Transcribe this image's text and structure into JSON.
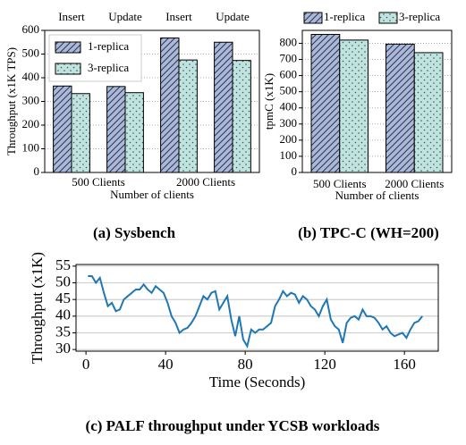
{
  "chart_data": [
    {
      "type": "bar",
      "caption": "(a) Sysbench",
      "ylabel": "Throughput (x1K TPS)",
      "xlabel": "Number of clients",
      "categories": [
        "Insert",
        "Update",
        "Insert",
        "Update"
      ],
      "groups": [
        "500 Clients",
        "2000 Clients"
      ],
      "series": [
        {
          "name": "1-replica",
          "color": "#a9b9dc",
          "values": [
            365,
            363,
            568,
            550
          ]
        },
        {
          "name": "3-replica",
          "color": "#bfe3df",
          "values": [
            333,
            337,
            475,
            473
          ]
        }
      ],
      "ylim": [
        0,
        600
      ],
      "yticks": [
        0,
        100,
        200,
        300,
        400,
        500,
        600
      ],
      "grid": true,
      "legend": "upper left"
    },
    {
      "type": "bar",
      "caption": "(b) TPC-C (WH=200)",
      "ylabel": "tpmC (x1K)",
      "xlabel": "Number of clients",
      "categories": [
        "500 Clients",
        "2000 Clients"
      ],
      "series": [
        {
          "name": "1-replica",
          "color": "#a9b9dc",
          "values": [
            855,
            795
          ]
        },
        {
          "name": "3-replica",
          "color": "#bfe3df",
          "values": [
            820,
            742
          ]
        }
      ],
      "ylim": [
        0,
        880
      ],
      "yticks": [
        0,
        100,
        200,
        300,
        400,
        500,
        600,
        700,
        800
      ],
      "grid": true,
      "legend": "top"
    },
    {
      "type": "line",
      "caption": "(c) PALF throughput under YCSB workloads",
      "ylabel": "Throughput (x1K)",
      "xlabel": "Time (Seconds)",
      "x": [
        1,
        3,
        5,
        7,
        9,
        11,
        13,
        15,
        17,
        19,
        21,
        23,
        25,
        27,
        29,
        31,
        33,
        35,
        37,
        39,
        41,
        43,
        45,
        47,
        49,
        51,
        53,
        55,
        57,
        59,
        61,
        63,
        65,
        67,
        69,
        71,
        73,
        75,
        77,
        79,
        81,
        83,
        85,
        87,
        89,
        91,
        93,
        95,
        97,
        99,
        101,
        103,
        105,
        107,
        109,
        111,
        113,
        115,
        117,
        119,
        121,
        123,
        125,
        127,
        129,
        131,
        133,
        135,
        137,
        139,
        141,
        143,
        145,
        147,
        149,
        151,
        153,
        155,
        157,
        159,
        161,
        163,
        165,
        167,
        169
      ],
      "series": [
        {
          "color": "#1f77b4",
          "values": [
            52,
            52,
            50,
            51.5,
            47,
            43,
            44,
            41.5,
            42,
            45,
            46,
            47,
            48,
            48,
            49.5,
            48,
            47,
            49,
            48,
            47,
            44,
            40,
            38,
            35,
            36,
            36.5,
            38,
            40,
            43,
            46,
            45,
            47,
            47.5,
            42,
            44,
            46,
            39,
            34,
            40,
            33,
            31,
            36,
            35,
            36,
            36,
            37,
            38,
            43,
            45,
            47.5,
            46,
            47,
            46.5,
            44,
            46,
            45,
            43,
            42,
            40,
            43,
            45,
            39,
            37,
            36,
            32,
            38,
            39.5,
            40,
            39,
            42,
            40,
            40,
            39.5,
            38,
            36,
            37,
            35,
            34,
            34.5,
            35,
            33.5,
            36,
            38,
            38.5,
            40
          ]
        }
      ],
      "xlim": [
        -5,
        177
      ],
      "xticks": [
        0,
        40,
        80,
        120,
        160
      ],
      "ylim": [
        29.5,
        55.5
      ],
      "yticks": [
        30,
        35,
        40,
        45,
        50,
        55
      ],
      "grid": true
    }
  ]
}
